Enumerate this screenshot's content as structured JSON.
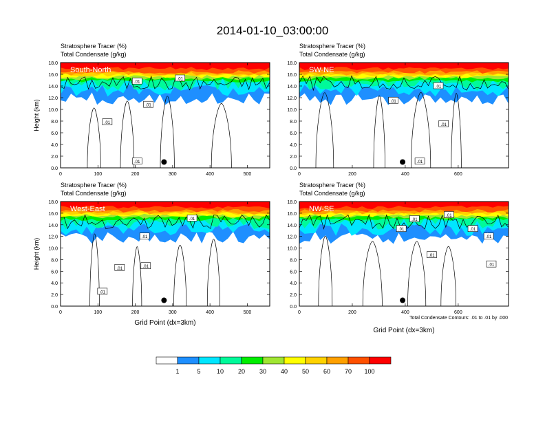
{
  "title": "2014-01-10_03:00:00",
  "colorbar": {
    "colors": [
      "#ffffff",
      "#1e8fff",
      "#00e6ff",
      "#00fa9a",
      "#00ee00",
      "#a0e632",
      "#ffff00",
      "#ffd200",
      "#ffa000",
      "#ff5000",
      "#ff0000"
    ],
    "labels": [
      "1",
      "5",
      "10",
      "20",
      "30",
      "40",
      "50",
      "60",
      "70",
      "100"
    ]
  },
  "contour_note": "Total Condensate Contours: .01 to .01 by .000",
  "chart_data": [
    {
      "type": "heatmap",
      "header_line1": "Stratosphere Tracer   (%)",
      "header_line2": "Total Condensate   (g/kg)",
      "panel_label": "South-North",
      "ylabel": "Height (km)",
      "xlabel": "",
      "xlim": [
        0,
        560
      ],
      "ylim": [
        0,
        18
      ],
      "x_ticks": [
        "0",
        "100",
        "200",
        "300",
        "400",
        "500"
      ],
      "y_ticks": [
        "0.0",
        "2.0",
        "4.0",
        "6.0",
        "8.0",
        "10.0",
        "12.0",
        "14.0",
        "16.0",
        "18.0"
      ],
      "contour_labels": [
        {
          "text": ".01",
          "x": 205,
          "y": 14.8
        },
        {
          "text": ".01",
          "x": 320,
          "y": 15.3
        },
        {
          "text": ".01",
          "x": 235,
          "y": 10.8
        },
        {
          "text": ".01",
          "x": 125,
          "y": 7.8
        },
        {
          "text": ".01",
          "x": 205,
          "y": 1.1
        }
      ],
      "marker": {
        "x": 277,
        "y": 1.0
      }
    },
    {
      "type": "heatmap",
      "header_line1": "Stratosphere Tracer   (%)",
      "header_line2": "Total Condensate   (g/kg)",
      "panel_label": "SW-NE",
      "ylabel": "",
      "xlabel": "",
      "xlim": [
        0,
        790
      ],
      "ylim": [
        0,
        18
      ],
      "x_ticks": [
        "0",
        "200",
        "400",
        "600"
      ],
      "y_ticks": [
        "0.0",
        "2.0",
        "4.0",
        "6.0",
        "8.0",
        "10.0",
        "12.0",
        "14.0",
        "16.0",
        "18.0"
      ],
      "contour_labels": [
        {
          "text": ".01",
          "x": 525,
          "y": 14.0
        },
        {
          "text": ".01",
          "x": 355,
          "y": 11.5
        },
        {
          "text": ".01",
          "x": 545,
          "y": 7.5
        },
        {
          "text": ".01",
          "x": 455,
          "y": 1.1
        }
      ],
      "marker": {
        "x": 390,
        "y": 1.0
      }
    },
    {
      "type": "heatmap",
      "header_line1": "Stratosphere Tracer   (%)",
      "header_line2": "Total Condensate   (g/kg)",
      "panel_label": "West-East",
      "ylabel": "Height (km)",
      "xlabel": "Grid Point (dx=3km)",
      "xlim": [
        0,
        560
      ],
      "ylim": [
        0,
        18
      ],
      "x_ticks": [
        "0",
        "100",
        "200",
        "300",
        "400",
        "500"
      ],
      "y_ticks": [
        "0.0",
        "2.0",
        "4.0",
        "6.0",
        "8.0",
        "10.0",
        "12.0",
        "14.0",
        "16.0",
        "18.0"
      ],
      "contour_labels": [
        {
          "text": ".01",
          "x": 352,
          "y": 15.1
        },
        {
          "text": ".01",
          "x": 225,
          "y": 12.0
        },
        {
          "text": ".01",
          "x": 228,
          "y": 6.9
        },
        {
          "text": ".01",
          "x": 158,
          "y": 6.6
        },
        {
          "text": ".01",
          "x": 112,
          "y": 2.5
        }
      ],
      "marker": {
        "x": 277,
        "y": 1.0
      }
    },
    {
      "type": "heatmap",
      "header_line1": "Stratosphere Tracer   (%)",
      "header_line2": "Total Condensate   (g/kg)",
      "panel_label": "NW-SE",
      "ylabel": "",
      "xlabel": "Grid Point (dx=3km)",
      "xlim": [
        0,
        790
      ],
      "ylim": [
        0,
        18
      ],
      "x_ticks": [
        "0",
        "200",
        "400",
        "600"
      ],
      "y_ticks": [
        "0.0",
        "2.0",
        "4.0",
        "6.0",
        "8.0",
        "10.0",
        "12.0",
        "14.0",
        "16.0",
        "18.0"
      ],
      "contour_labels": [
        {
          "text": ".01",
          "x": 565,
          "y": 15.7
        },
        {
          "text": ".01",
          "x": 435,
          "y": 15.0
        },
        {
          "text": ".01",
          "x": 385,
          "y": 13.3
        },
        {
          "text": ".01",
          "x": 655,
          "y": 13.3
        },
        {
          "text": ".01",
          "x": 500,
          "y": 8.8
        },
        {
          "text": ".01",
          "x": 715,
          "y": 12.0
        },
        {
          "text": ".01",
          "x": 725,
          "y": 7.2
        }
      ],
      "marker": {
        "x": 390,
        "y": 1.0
      }
    }
  ]
}
